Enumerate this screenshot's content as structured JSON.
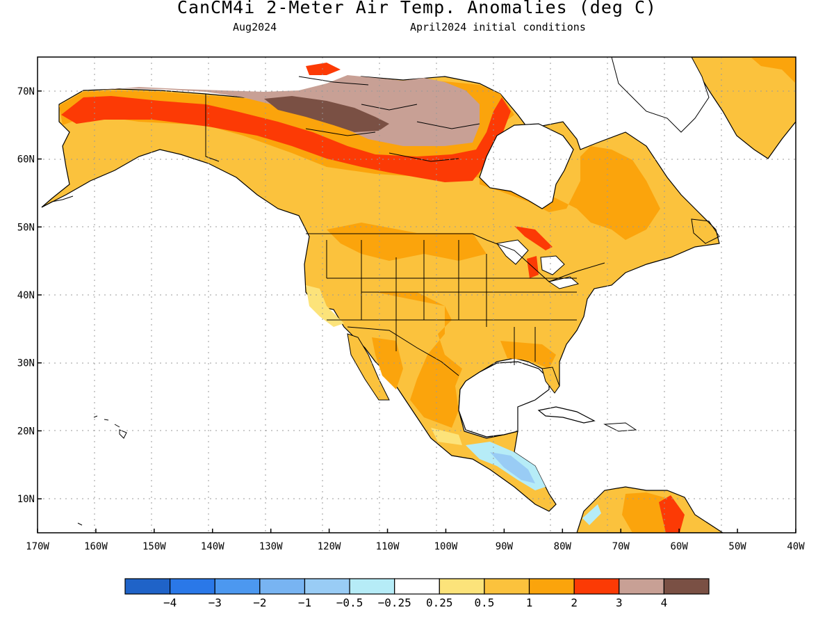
{
  "header": {
    "title": "CanCM4i 2-Meter Air Temp. Anomalies (deg C)",
    "valid": "Aug2024",
    "init": "April2024 initial conditions"
  },
  "map": {
    "lon_range": [
      -170,
      -40
    ],
    "lat_range": [
      5,
      75
    ],
    "lon_labels": [
      "170W",
      "160W",
      "150W",
      "140W",
      "130W",
      "120W",
      "110W",
      "100W",
      "90W",
      "80W",
      "70W",
      "60W",
      "50W",
      "40W"
    ],
    "lat_labels": [
      "10N",
      "20N",
      "30N",
      "40N",
      "50N",
      "60N",
      "70N"
    ],
    "lon_ticks": [
      -170,
      -160,
      -150,
      -140,
      -130,
      -120,
      -110,
      -100,
      -90,
      -80,
      -70,
      -60,
      -50,
      -40
    ],
    "lat_ticks": [
      10,
      20,
      30,
      40,
      50,
      60,
      70
    ],
    "grid": "dotted"
  },
  "colorbar": {
    "colors": [
      "#1f63c8",
      "#2a78e8",
      "#4c98f0",
      "#78b4f2",
      "#99ccf5",
      "#b6ecf7",
      "#ffffff",
      "#fce37a",
      "#fbc23d",
      "#fba40c",
      "#fc3a05",
      "#c8a095",
      "#7a5044"
    ],
    "labels": [
      "−4",
      "−3",
      "−2",
      "−1",
      "−0.5",
      "−0.25",
      "0.25",
      "0.5",
      "1",
      "2",
      "3",
      "4"
    ]
  },
  "anomaly_regions": [
    {
      "name": "Alaska-Yukon",
      "level": "2 to 3"
    },
    {
      "name": "Canadian Arctic Archipelago",
      "level": ">4"
    },
    {
      "name": "Central US",
      "level": "0.5 to 1"
    },
    {
      "name": "Central America",
      "level": "-1 to -0.5"
    },
    {
      "name": "Northern South America",
      "level": "1 to 3"
    },
    {
      "name": "Greenland",
      "level": "1 to 2"
    }
  ]
}
